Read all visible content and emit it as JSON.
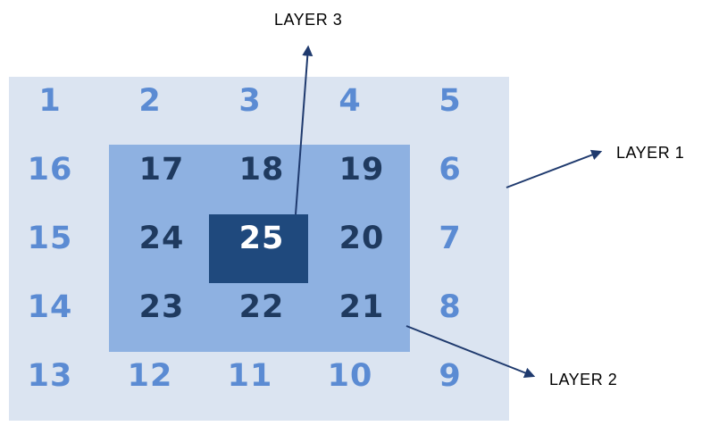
{
  "layers": {
    "layer1_label": "LAYER 1",
    "layer2_label": "LAYER 2",
    "layer3_label": "LAYER 3"
  },
  "grid": {
    "row1": [
      "1",
      "2",
      "3",
      "4",
      "5"
    ],
    "row2": [
      "16",
      "17",
      "18",
      "19",
      "6"
    ],
    "row3": [
      "15",
      "24",
      "25",
      "20",
      "7"
    ],
    "row4": [
      "14",
      "23",
      "22",
      "21",
      "8"
    ],
    "row5": [
      "13",
      "12",
      "11",
      "10",
      "9"
    ]
  },
  "colors": {
    "layer1_fill": "#dbe4f1",
    "layer2_fill": "#8eb1e1",
    "layer3_fill": "#1f497d",
    "outer_number": "#5b8bd3",
    "inner_number": "#1f3a5f",
    "center_number": "#ffffff",
    "arrow": "#1f3a6e"
  }
}
